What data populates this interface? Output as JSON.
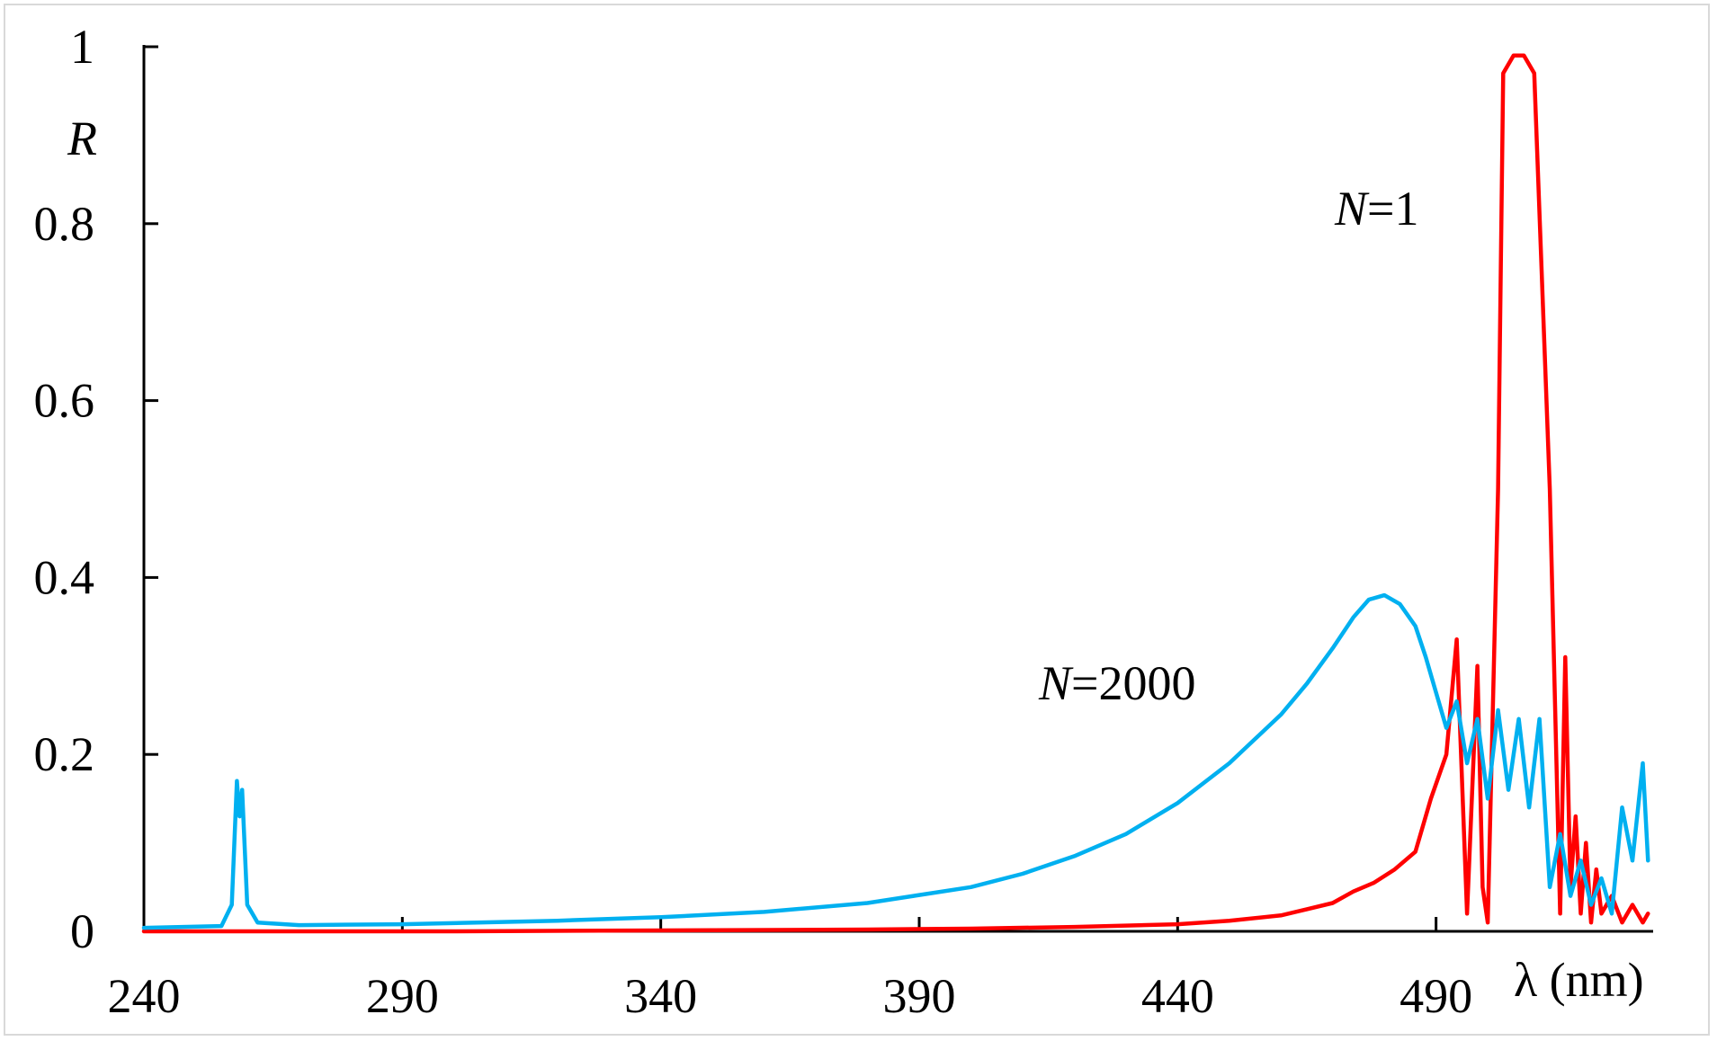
{
  "chart_data": {
    "type": "line",
    "xlabel": "λ (nm)",
    "ylabel": "R",
    "xlim": [
      240,
      532
    ],
    "ylim": [
      0,
      1
    ],
    "x_ticks": [
      240,
      290,
      340,
      390,
      440,
      490
    ],
    "y_ticks": [
      0,
      0.2,
      0.4,
      0.6,
      0.8,
      1
    ],
    "y_tick_labels": [
      "0",
      "0.2",
      "0.4",
      "0.6",
      "0.8",
      "1"
    ],
    "grid": false,
    "series": [
      {
        "name": "N=1",
        "name_prefix": "N",
        "name_suffix": "=1",
        "color": "#ff0000",
        "x": [
          240,
          300,
          340,
          380,
          400,
          420,
          440,
          450,
          460,
          465,
          470,
          474,
          478,
          482,
          486,
          489,
          492,
          494,
          496,
          498,
          499,
          500,
          502,
          503,
          505,
          507,
          509,
          512,
          514,
          515,
          516,
          517,
          518,
          519,
          520,
          521,
          522,
          524,
          526,
          528,
          530,
          531
        ],
        "y": [
          0,
          0,
          0.001,
          0.002,
          0.003,
          0.005,
          0.008,
          0.012,
          0.018,
          0.025,
          0.032,
          0.045,
          0.055,
          0.07,
          0.09,
          0.15,
          0.2,
          0.33,
          0.02,
          0.3,
          0.05,
          0.01,
          0.5,
          0.97,
          0.99,
          0.99,
          0.97,
          0.5,
          0.02,
          0.31,
          0.05,
          0.13,
          0.02,
          0.1,
          0.01,
          0.07,
          0.02,
          0.04,
          0.01,
          0.03,
          0.01,
          0.02
        ]
      },
      {
        "name": "N=2000",
        "name_prefix": "N",
        "name_suffix": "=2000",
        "color": "#00b0f0",
        "x": [
          240,
          255,
          257,
          258,
          258.5,
          259,
          260,
          262,
          270,
          290,
          320,
          340,
          360,
          380,
          400,
          410,
          420,
          430,
          440,
          450,
          460,
          465,
          470,
          474,
          477,
          480,
          483,
          486,
          488,
          490,
          492,
          494,
          496,
          498,
          500,
          502,
          504,
          506,
          508,
          510,
          512,
          514,
          516,
          518,
          520,
          522,
          524,
          526,
          528,
          530,
          531
        ],
        "y": [
          0.004,
          0.006,
          0.03,
          0.17,
          0.13,
          0.16,
          0.03,
          0.01,
          0.007,
          0.008,
          0.012,
          0.016,
          0.022,
          0.032,
          0.05,
          0.065,
          0.085,
          0.11,
          0.145,
          0.19,
          0.245,
          0.28,
          0.32,
          0.355,
          0.375,
          0.38,
          0.37,
          0.345,
          0.31,
          0.27,
          0.23,
          0.26,
          0.19,
          0.24,
          0.15,
          0.25,
          0.16,
          0.24,
          0.14,
          0.24,
          0.05,
          0.11,
          0.04,
          0.08,
          0.03,
          0.06,
          0.02,
          0.14,
          0.08,
          0.19,
          0.08
        ]
      }
    ]
  }
}
